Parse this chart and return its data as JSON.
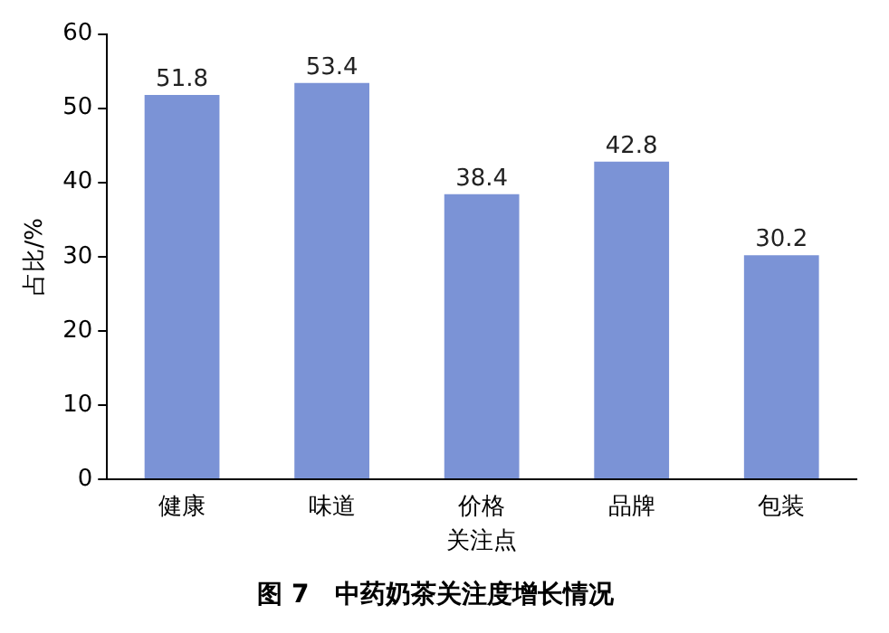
{
  "chart_data": {
    "type": "bar",
    "title": "图 7　中药奶茶关注度增长情况",
    "xlabel": "关注点",
    "ylabel": "占比/%",
    "categories": [
      "健康",
      "味道",
      "价格",
      "品牌",
      "包装"
    ],
    "values": [
      51.8,
      53.4,
      38.4,
      42.8,
      30.2
    ],
    "color": "#7b93d6",
    "ylim": [
      0,
      60
    ],
    "yticks": [
      0,
      10,
      20,
      30,
      40,
      50,
      60
    ],
    "grid": false,
    "data_labels": true
  }
}
